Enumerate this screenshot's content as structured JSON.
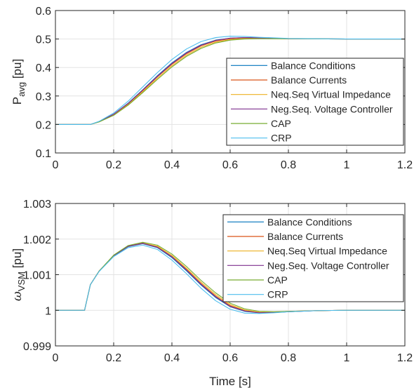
{
  "chart_data": [
    {
      "type": "line",
      "ylabel_main": "P",
      "ylabel_sub": "avg",
      "ylabel_unit": "[pu]",
      "xlabel": "",
      "xlim": [
        0,
        1.2
      ],
      "ylim": [
        0.1,
        0.6
      ],
      "xticks": [
        0,
        0.2,
        0.4,
        0.6,
        0.8,
        1,
        1.2
      ],
      "xtick_labels": [
        "0",
        "0.2",
        "0.4",
        "0.6",
        "0.8",
        "1",
        "1.2"
      ],
      "yticks": [
        0.1,
        0.2,
        0.3,
        0.4,
        0.5,
        0.6
      ],
      "ytick_labels": [
        "0.1",
        "0.2",
        "0.3",
        "0.4",
        "0.5",
        "0.6"
      ],
      "grid": true,
      "legend_position": "center-right",
      "series": [
        {
          "name": "Balance Conditions",
          "color": "#0072BD",
          "x": [
            0,
            0.12,
            0.15,
            0.2,
            0.25,
            0.3,
            0.35,
            0.4,
            0.45,
            0.5,
            0.55,
            0.6,
            0.65,
            0.7,
            0.8,
            1.0,
            1.2
          ],
          "y": [
            0.2,
            0.2,
            0.21,
            0.236,
            0.275,
            0.322,
            0.371,
            0.416,
            0.453,
            0.48,
            0.496,
            0.503,
            0.505,
            0.504,
            0.501,
            0.5,
            0.5
          ]
        },
        {
          "name": "Balance Currents",
          "color": "#D95319",
          "x": [
            0,
            0.12,
            0.15,
            0.2,
            0.25,
            0.3,
            0.35,
            0.4,
            0.45,
            0.5,
            0.55,
            0.6,
            0.65,
            0.7,
            0.8,
            1.0,
            1.2
          ],
          "y": [
            0.2,
            0.2,
            0.21,
            0.235,
            0.273,
            0.319,
            0.367,
            0.411,
            0.448,
            0.476,
            0.493,
            0.501,
            0.504,
            0.503,
            0.501,
            0.5,
            0.5
          ]
        },
        {
          "name": "Neq.Seq Virtual Impedance",
          "color": "#EDB120",
          "x": [
            0,
            0.12,
            0.15,
            0.2,
            0.25,
            0.3,
            0.35,
            0.4,
            0.45,
            0.5,
            0.55,
            0.6,
            0.65,
            0.7,
            0.8,
            1.0,
            1.2
          ],
          "y": [
            0.2,
            0.2,
            0.209,
            0.233,
            0.27,
            0.315,
            0.362,
            0.406,
            0.443,
            0.471,
            0.489,
            0.498,
            0.502,
            0.502,
            0.501,
            0.5,
            0.5
          ]
        },
        {
          "name": "Neg.Seq. Voltage Controller",
          "color": "#7E2F8E",
          "x": [
            0,
            0.12,
            0.15,
            0.2,
            0.25,
            0.3,
            0.35,
            0.4,
            0.45,
            0.5,
            0.55,
            0.6,
            0.65,
            0.7,
            0.8,
            1.0,
            1.2
          ],
          "y": [
            0.2,
            0.2,
            0.21,
            0.236,
            0.274,
            0.321,
            0.369,
            0.414,
            0.451,
            0.478,
            0.495,
            0.503,
            0.505,
            0.504,
            0.501,
            0.5,
            0.5
          ]
        },
        {
          "name": "CAP",
          "color": "#77AC30",
          "x": [
            0,
            0.12,
            0.15,
            0.2,
            0.25,
            0.3,
            0.35,
            0.4,
            0.45,
            0.5,
            0.55,
            0.6,
            0.65,
            0.7,
            0.8,
            1.0,
            1.2
          ],
          "y": [
            0.2,
            0.2,
            0.209,
            0.232,
            0.268,
            0.312,
            0.358,
            0.402,
            0.439,
            0.467,
            0.486,
            0.496,
            0.5,
            0.501,
            0.501,
            0.5,
            0.5
          ]
        },
        {
          "name": "CRP",
          "color": "#4DBEEE",
          "x": [
            0,
            0.12,
            0.15,
            0.2,
            0.25,
            0.3,
            0.35,
            0.4,
            0.45,
            0.5,
            0.55,
            0.6,
            0.65,
            0.7,
            0.8,
            1.0,
            1.2
          ],
          "y": [
            0.2,
            0.2,
            0.211,
            0.24,
            0.282,
            0.332,
            0.382,
            0.428,
            0.465,
            0.491,
            0.505,
            0.51,
            0.509,
            0.506,
            0.502,
            0.5,
            0.5
          ]
        }
      ]
    },
    {
      "type": "line",
      "ylabel_main": "ω",
      "ylabel_sub": "VSM",
      "ylabel_unit": "[pu]",
      "xlabel": "Time [s]",
      "xlim": [
        0,
        1.2
      ],
      "ylim": [
        0.999,
        1.003
      ],
      "xticks": [
        0,
        0.2,
        0.4,
        0.6,
        0.8,
        1,
        1.2
      ],
      "xtick_labels": [
        "0",
        "0.2",
        "0.4",
        "0.6",
        "0.8",
        "1",
        "1.2"
      ],
      "yticks": [
        0.999,
        1,
        1.001,
        1.002,
        1.003
      ],
      "ytick_labels": [
        "0.999",
        "1",
        "1.001",
        "1.002",
        "1.003"
      ],
      "grid": true,
      "legend_position": "top-right",
      "series": [
        {
          "name": "Balance Conditions",
          "color": "#0072BD",
          "x": [
            0,
            0.1,
            0.12,
            0.15,
            0.2,
            0.25,
            0.3,
            0.35,
            0.4,
            0.45,
            0.5,
            0.55,
            0.6,
            0.65,
            0.7,
            0.75,
            0.8,
            0.9,
            1.0,
            1.2
          ],
          "y": [
            1.0,
            1.0,
            1.00072,
            1.0011,
            1.00153,
            1.00179,
            1.00187,
            1.00176,
            1.00148,
            1.00111,
            1.00071,
            1.00036,
            1.0001,
            0.99997,
            0.99993,
            0.99994,
            0.99996,
            0.99999,
            1.0,
            1.0
          ]
        },
        {
          "name": "Balance Currents",
          "color": "#D95319",
          "x": [
            0,
            0.1,
            0.12,
            0.15,
            0.2,
            0.25,
            0.3,
            0.35,
            0.4,
            0.45,
            0.5,
            0.55,
            0.6,
            0.65,
            0.7,
            0.75,
            0.8,
            0.9,
            1.0,
            1.2
          ],
          "y": [
            1.0,
            1.0,
            1.00072,
            1.0011,
            1.00154,
            1.0018,
            1.00188,
            1.00178,
            1.00151,
            1.00115,
            1.00075,
            1.0004,
            1.00013,
            0.99999,
            0.99994,
            0.99995,
            0.99997,
            0.99999,
            1.0,
            1.0
          ]
        },
        {
          "name": "Neq.Seq Virtual Impedance",
          "color": "#EDB120",
          "x": [
            0,
            0.1,
            0.12,
            0.15,
            0.2,
            0.25,
            0.3,
            0.35,
            0.4,
            0.45,
            0.5,
            0.55,
            0.6,
            0.65,
            0.7,
            0.75,
            0.8,
            0.9,
            1.0,
            1.2
          ],
          "y": [
            1.0,
            1.0,
            1.00072,
            1.0011,
            1.00154,
            1.00181,
            1.00189,
            1.0018,
            1.00154,
            1.00118,
            1.00079,
            1.00044,
            1.00016,
            1.00001,
            0.99995,
            0.99995,
            0.99997,
            0.99999,
            1.0,
            1.0
          ]
        },
        {
          "name": "Neg.Seq. Voltage Controller",
          "color": "#7E2F8E",
          "x": [
            0,
            0.1,
            0.12,
            0.15,
            0.2,
            0.25,
            0.3,
            0.35,
            0.4,
            0.45,
            0.5,
            0.55,
            0.6,
            0.65,
            0.7,
            0.75,
            0.8,
            0.9,
            1.0,
            1.2
          ],
          "y": [
            1.0,
            1.0,
            1.00072,
            1.0011,
            1.00154,
            1.0018,
            1.00188,
            1.00177,
            1.0015,
            1.00113,
            1.00073,
            1.00038,
            1.00011,
            0.99998,
            0.99993,
            0.99994,
            0.99996,
            0.99999,
            1.0,
            1.0
          ]
        },
        {
          "name": "CAP",
          "color": "#77AC30",
          "x": [
            0,
            0.1,
            0.12,
            0.15,
            0.2,
            0.25,
            0.3,
            0.35,
            0.4,
            0.45,
            0.5,
            0.55,
            0.6,
            0.65,
            0.7,
            0.75,
            0.8,
            0.9,
            1.0,
            1.2
          ],
          "y": [
            1.0,
            1.0,
            1.00072,
            1.0011,
            1.00155,
            1.00182,
            1.00191,
            1.00183,
            1.00158,
            1.00123,
            1.00084,
            1.00049,
            1.0002,
            1.00004,
            0.99997,
            0.99996,
            0.99997,
            0.99999,
            1.0,
            1.0
          ]
        },
        {
          "name": "CRP",
          "color": "#4DBEEE",
          "x": [
            0,
            0.1,
            0.12,
            0.15,
            0.2,
            0.25,
            0.3,
            0.35,
            0.4,
            0.45,
            0.5,
            0.55,
            0.6,
            0.65,
            0.7,
            0.75,
            0.8,
            0.9,
            1.0,
            1.2
          ],
          "y": [
            1.0,
            1.0,
            1.00072,
            1.00109,
            1.00151,
            1.00176,
            1.00183,
            1.00171,
            1.00141,
            1.00103,
            1.00062,
            1.00027,
            1.00003,
            0.99992,
            0.99991,
            0.99993,
            0.99996,
            0.99999,
            1.0,
            1.0
          ]
        }
      ]
    }
  ]
}
